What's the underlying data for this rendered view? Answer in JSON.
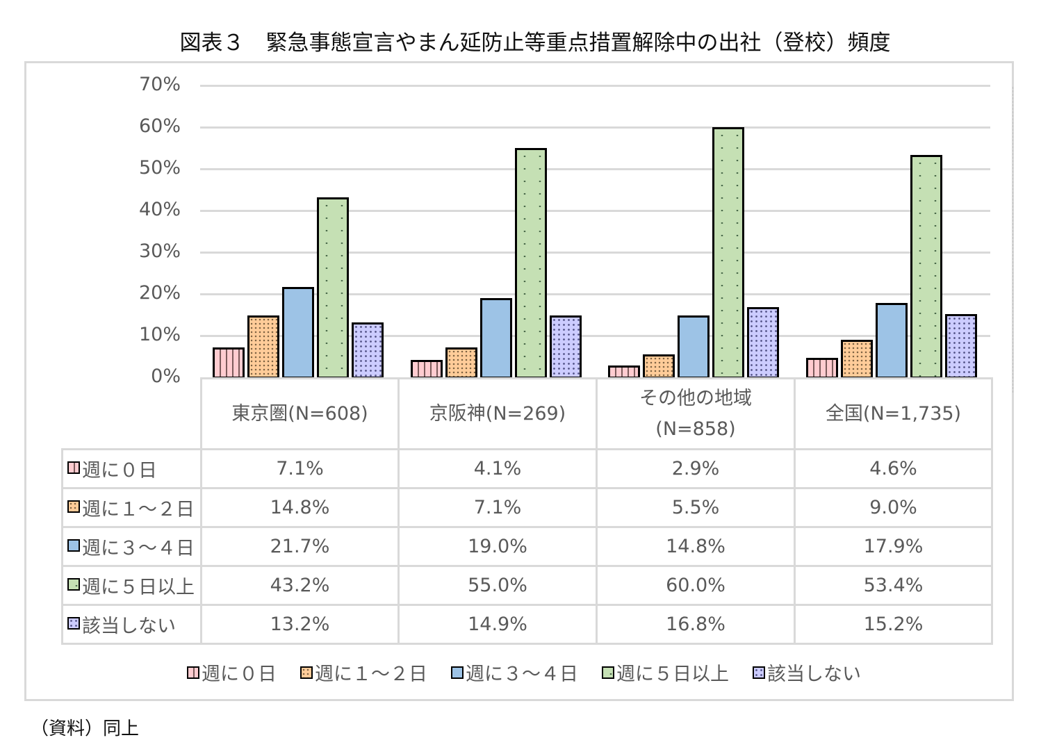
{
  "title": "図表３　緊急事態宣言やまん延防止等重点措置解除中の出社（登校）頻度",
  "source_note": "（資料）同上",
  "colors": {
    "series0": "#ffccd0",
    "series1": "#ffcc99",
    "series2": "#9dc3e6",
    "series3": "#c5e0b4",
    "series4": "#ccccff",
    "gridline": "#d9d9d9",
    "bar_border": "#000000"
  },
  "y_axis": {
    "ticks": [
      "70%",
      "60%",
      "50%",
      "40%",
      "30%",
      "20%",
      "10%",
      "0%"
    ]
  },
  "categories": [
    {
      "line1": "東京圏(N=608)",
      "line2": ""
    },
    {
      "line1": "京阪神(N=269)",
      "line2": ""
    },
    {
      "line1": "その他の地域",
      "line2": "(N=858)"
    },
    {
      "line1": "全国(N=1,735)",
      "line2": ""
    }
  ],
  "table_rows": [
    {
      "label": "週に０日",
      "cells": [
        "7.1%",
        "4.1%",
        "2.9%",
        "4.6%"
      ]
    },
    {
      "label": "週に１～２日",
      "cells": [
        "14.8%",
        "7.1%",
        "5.5%",
        "9.0%"
      ]
    },
    {
      "label": "週に３～４日",
      "cells": [
        "21.7%",
        "19.0%",
        "14.8%",
        "17.9%"
      ]
    },
    {
      "label": "週に５日以上",
      "cells": [
        "43.2%",
        "55.0%",
        "60.0%",
        "53.4%"
      ]
    },
    {
      "label": "該当しない",
      "cells": [
        "13.2%",
        "14.9%",
        "16.8%",
        "15.2%"
      ]
    }
  ],
  "legend": [
    "週に０日",
    "週に１～２日",
    "週に３～４日",
    "週に５日以上",
    "該当しない"
  ],
  "chart_data": {
    "type": "bar",
    "title": "図表３　緊急事態宣言やまん延防止等重点措置解除中の出社（登校）頻度",
    "xlabel": "",
    "ylabel": "",
    "ylim": [
      0,
      70
    ],
    "y_unit": "%",
    "grid": true,
    "legend_position": "bottom",
    "data_table": true,
    "categories": [
      "東京圏(N=608)",
      "京阪神(N=269)",
      "その他の地域(N=858)",
      "全国(N=1,735)"
    ],
    "series": [
      {
        "name": "週に０日",
        "values": [
          7.1,
          4.1,
          2.9,
          4.6
        ]
      },
      {
        "name": "週に１～２日",
        "values": [
          14.8,
          7.1,
          5.5,
          9.0
        ]
      },
      {
        "name": "週に３～４日",
        "values": [
          21.7,
          19.0,
          14.8,
          17.9
        ]
      },
      {
        "name": "週に５日以上",
        "values": [
          43.2,
          55.0,
          60.0,
          53.4
        ]
      },
      {
        "name": "該当しない",
        "values": [
          13.2,
          14.9,
          16.8,
          15.2
        ]
      }
    ]
  }
}
